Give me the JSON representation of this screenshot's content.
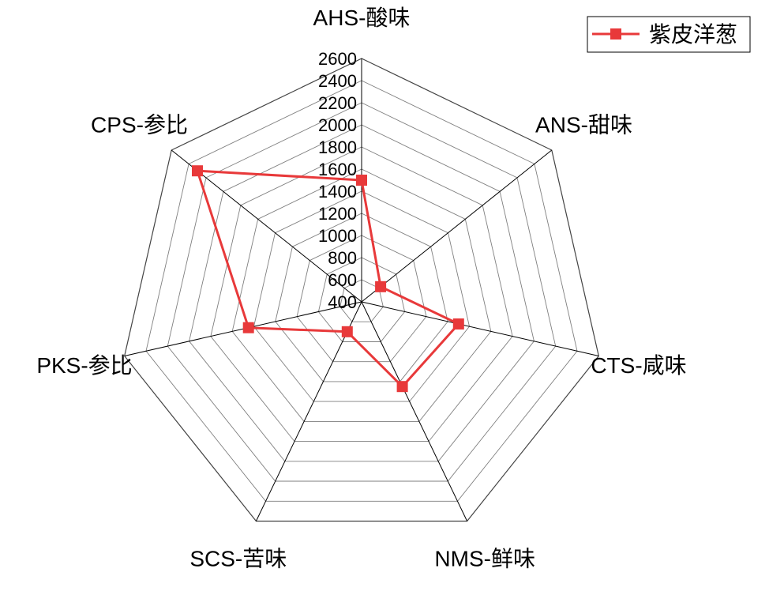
{
  "chart_data": {
    "type": "radar",
    "axes": [
      "AHS-酸味",
      "ANS-甜味",
      "CTS-咸味",
      "NMS-鲜味",
      "SCS-苦味",
      "PKS-参比",
      "CPS-参比"
    ],
    "ticks": [
      "400",
      "600",
      "800",
      "1000",
      "1200",
      "1400",
      "1600",
      "1800",
      "2000",
      "2200",
      "2400",
      "2600"
    ],
    "rmin": 400,
    "rmax": 2600,
    "grid": true,
    "legend_position": "top-right",
    "series": [
      {
        "name": "紫皮洋葱",
        "color": "#E8393A",
        "marker": "square",
        "values": [
          1500,
          620,
          1300,
          1250,
          700,
          1450,
          2300
        ]
      }
    ]
  }
}
